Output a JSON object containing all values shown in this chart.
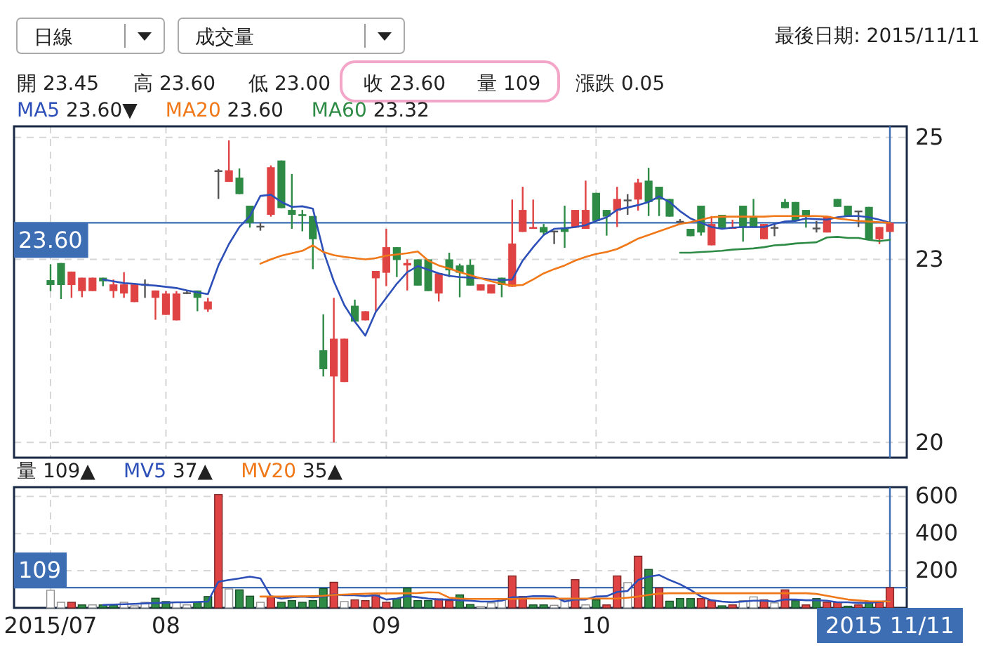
{
  "chart_data": [
    {
      "type": "candlestick",
      "annotations": [
        "日線",
        "成交量",
        "最後日期: 2015/11/11",
        "開 23.45",
        "高 23.60",
        "低 23.00",
        "收 23.60",
        "量 109",
        "漲跌 0.05"
      ],
      "categories": [
        "2015/07",
        null,
        null,
        null,
        null,
        null,
        null,
        null,
        null,
        null,
        null,
        "08",
        null,
        null,
        null,
        null,
        null,
        null,
        null,
        null,
        null,
        null,
        null,
        null,
        null,
        null,
        null,
        null,
        null,
        null,
        null,
        null,
        "09",
        null,
        null,
        null,
        null,
        null,
        null,
        null,
        null,
        null,
        null,
        null,
        null,
        null,
        null,
        null,
        null,
        null,
        null,
        null,
        "10",
        null,
        null,
        null,
        null,
        null,
        null,
        null,
        null,
        null,
        null,
        null,
        null,
        null,
        null,
        null,
        null,
        null,
        null,
        null,
        null,
        null,
        null,
        null,
        null,
        null,
        null,
        null,
        "2015 11/11"
      ],
      "ohlc": [
        [
          22.66,
          22.92,
          22.48,
          22.58
        ],
        [
          22.94,
          22.94,
          22.35,
          22.58
        ],
        [
          22.58,
          22.8,
          22.37,
          22.8
        ],
        [
          22.48,
          22.7,
          22.38,
          22.7
        ],
        [
          22.48,
          22.7,
          22.48,
          22.7
        ],
        [
          22.7,
          22.7,
          22.56,
          22.64
        ],
        [
          22.48,
          22.67,
          22.37,
          22.59
        ],
        [
          22.44,
          22.79,
          22.37,
          22.59
        ],
        [
          22.3,
          22.59,
          22.3,
          22.59
        ],
        [
          22.6,
          22.67,
          22.37,
          22.6
        ],
        [
          22.37,
          22.49,
          22.01,
          22.49
        ],
        [
          22.09,
          22.48,
          22.09,
          22.44
        ],
        [
          22.0,
          22.48,
          22.0,
          22.44
        ],
        [
          22.46,
          22.5,
          22.43,
          22.46
        ],
        [
          22.49,
          22.49,
          22.15,
          22.37
        ],
        [
          22.18,
          22.37,
          22.14,
          22.31
        ],
        [
          24.46,
          24.48,
          23.99,
          24.46
        ],
        [
          24.27,
          24.95,
          24.27,
          24.46
        ],
        [
          24.34,
          24.49,
          24.07,
          24.07
        ],
        [
          23.88,
          23.88,
          23.52,
          23.6
        ],
        [
          23.55,
          23.6,
          23.47,
          23.55
        ],
        [
          23.73,
          24.54,
          23.7,
          24.51
        ],
        [
          24.62,
          24.62,
          23.84,
          23.84
        ],
        [
          23.81,
          24.4,
          23.5,
          23.73
        ],
        [
          23.74,
          23.81,
          23.46,
          23.71
        ],
        [
          23.71,
          23.71,
          22.84,
          23.33
        ],
        [
          21.51,
          22.1,
          21.08,
          21.2
        ],
        [
          21.08,
          22.37,
          20.0,
          21.7
        ],
        [
          20.99,
          21.7,
          20.99,
          21.7
        ],
        [
          22.24,
          22.34,
          21.98,
          21.98
        ],
        [
          22.0,
          22.15,
          22.0,
          22.15
        ],
        [
          22.69,
          22.81,
          22.15,
          22.81
        ],
        [
          22.78,
          23.5,
          22.56,
          23.2
        ],
        [
          23.2,
          23.2,
          22.71,
          22.99
        ],
        [
          22.9,
          23.0,
          22.49,
          22.94
        ],
        [
          23.0,
          23.0,
          22.57,
          22.57
        ],
        [
          23.0,
          23.0,
          22.48,
          22.48
        ],
        [
          22.44,
          22.77,
          22.31,
          22.77
        ],
        [
          23.0,
          23.11,
          22.71,
          22.82
        ],
        [
          22.9,
          22.93,
          22.38,
          22.78
        ],
        [
          22.91,
          23.0,
          22.57,
          22.57
        ],
        [
          22.49,
          22.59,
          22.49,
          22.59
        ],
        [
          22.44,
          22.59,
          22.44,
          22.59
        ],
        [
          22.7,
          22.7,
          22.38,
          22.58
        ],
        [
          22.55,
          23.98,
          22.55,
          23.26
        ],
        [
          23.45,
          24.19,
          23.45,
          23.81
        ],
        [
          23.5,
          23.98,
          23.5,
          23.53
        ],
        [
          23.53,
          23.58,
          23.39,
          23.44
        ],
        [
          23.47,
          23.47,
          23.25,
          23.47
        ],
        [
          23.52,
          23.88,
          23.19,
          23.45
        ],
        [
          23.52,
          23.81,
          23.52,
          23.81
        ],
        [
          23.5,
          24.29,
          23.5,
          23.81
        ],
        [
          24.09,
          24.09,
          23.63,
          23.63
        ],
        [
          23.81,
          23.81,
          23.39,
          23.7
        ],
        [
          23.8,
          24.19,
          23.53,
          23.99
        ],
        [
          23.98,
          24.07,
          23.73,
          23.98
        ],
        [
          23.98,
          24.32,
          23.8,
          24.26
        ],
        [
          24.29,
          24.5,
          23.71,
          23.94
        ],
        [
          24.19,
          24.19,
          23.71,
          23.98
        ],
        [
          23.99,
          23.99,
          23.7,
          23.7
        ],
        [
          23.63,
          23.66,
          23.6,
          23.63
        ],
        [
          23.5,
          23.5,
          23.38,
          23.38
        ],
        [
          23.88,
          23.88,
          23.39,
          23.44
        ],
        [
          23.23,
          23.71,
          23.23,
          23.58
        ],
        [
          23.73,
          23.73,
          23.5,
          23.5
        ],
        [
          23.5,
          23.65,
          23.5,
          23.53
        ],
        [
          23.88,
          23.88,
          23.29,
          23.52
        ],
        [
          23.71,
          23.99,
          23.52,
          23.52
        ],
        [
          23.33,
          23.58,
          23.33,
          23.58
        ],
        [
          23.53,
          23.58,
          23.38,
          23.53
        ],
        [
          23.94,
          23.99,
          23.84,
          23.84
        ],
        [
          23.94,
          23.94,
          23.63,
          23.63
        ],
        [
          23.81,
          23.81,
          23.52,
          23.7
        ],
        [
          23.52,
          23.63,
          23.44,
          23.52
        ],
        [
          23.44,
          23.71,
          23.44,
          23.71
        ],
        [
          23.99,
          23.99,
          23.86,
          23.86
        ],
        [
          23.88,
          23.88,
          23.71,
          23.71
        ],
        [
          23.8,
          23.8,
          23.53,
          23.8
        ],
        [
          23.86,
          23.86,
          23.33,
          23.33
        ],
        [
          23.33,
          23.53,
          23.25,
          23.53
        ],
        [
          23.45,
          23.6,
          23.45,
          23.6
        ]
      ],
      "colors": [
        "#2e8b46",
        "#2e8b46",
        "#e04343",
        "#e04343",
        "#e04343",
        "#2e8b46",
        "#e04343",
        "#e04343",
        "#e04343",
        "#555555",
        "#e04343",
        "#e04343",
        "#e04343",
        "#555555",
        "#2e8b46",
        "#e04343",
        "#555555",
        "#e04343",
        "#2e8b46",
        "#2e8b46",
        "#555555",
        "#e04343",
        "#2e8b46",
        "#2e8b46",
        "#2e8b46",
        "#2e8b46",
        "#2e8b46",
        "#e04343",
        "#e04343",
        "#2e8b46",
        "#e04343",
        "#e04343",
        "#e04343",
        "#2e8b46",
        "#e04343",
        "#2e8b46",
        "#2e8b46",
        "#e04343",
        "#2e8b46",
        "#2e8b46",
        "#2e8b46",
        "#e04343",
        "#e04343",
        "#2e8b46",
        "#e04343",
        "#e04343",
        "#e04343",
        "#2e8b46",
        "#555555",
        "#2e8b46",
        "#e04343",
        "#e04343",
        "#2e8b46",
        "#2e8b46",
        "#e04343",
        "#555555",
        "#e04343",
        "#2e8b46",
        "#2e8b46",
        "#2e8b46",
        "#555555",
        "#2e8b46",
        "#2e8b46",
        "#e04343",
        "#2e8b46",
        "#e04343",
        "#2e8b46",
        "#2e8b46",
        "#e04343",
        "#555555",
        "#2e8b46",
        "#2e8b46",
        "#2e8b46",
        "#555555",
        "#e04343",
        "#2e8b46",
        "#2e8b46",
        "#555555",
        "#2e8b46",
        "#e04343",
        "#e04343"
      ],
      "series": [
        {
          "name": "MA5 23.60▼",
          "type": "line",
          "color": "#2d4fb8",
          "values": [
            null,
            null,
            null,
            null,
            null,
            22.67,
            22.64,
            22.61,
            22.6,
            22.58,
            22.57,
            22.55,
            22.53,
            22.49,
            22.46,
            22.43,
            22.9,
            23.25,
            23.53,
            23.71,
            24.04,
            24.06,
            23.94,
            23.86,
            23.87,
            23.83,
            23.14,
            22.64,
            22.25,
            21.98,
            21.75,
            22.14,
            22.37,
            22.6,
            22.79,
            22.89,
            22.83,
            22.77,
            22.73,
            22.71,
            22.7,
            22.69,
            22.67,
            22.66,
            22.67,
            22.98,
            23.2,
            23.4,
            23.5,
            23.51,
            23.53,
            23.56,
            23.63,
            23.69,
            23.81,
            23.85,
            23.89,
            23.94,
            24.03,
            23.94,
            23.79,
            23.67,
            23.6,
            23.53,
            23.5,
            23.52,
            23.53,
            23.53,
            23.53,
            23.58,
            23.62,
            23.63,
            23.67,
            23.66,
            23.65,
            23.69,
            23.71,
            23.71,
            23.69,
            23.65,
            23.6
          ]
        },
        {
          "name": "MA20 23.60",
          "type": "line",
          "color": "#f07818",
          "values": [
            null,
            null,
            null,
            null,
            null,
            null,
            null,
            null,
            null,
            null,
            null,
            null,
            null,
            null,
            null,
            null,
            null,
            null,
            null,
            null,
            22.93,
            23.0,
            23.06,
            23.1,
            23.14,
            23.23,
            23.12,
            23.07,
            23.04,
            23.02,
            23.0,
            23.02,
            23.06,
            23.08,
            23.1,
            23.13,
            22.98,
            22.9,
            22.85,
            22.79,
            22.74,
            22.69,
            22.64,
            22.6,
            22.57,
            22.58,
            22.67,
            22.77,
            22.84,
            22.9,
            22.98,
            23.04,
            23.09,
            23.12,
            23.17,
            23.25,
            23.34,
            23.4,
            23.46,
            23.52,
            23.58,
            23.61,
            23.65,
            23.69,
            23.7,
            23.7,
            23.7,
            23.7,
            23.7,
            23.71,
            23.71,
            23.71,
            23.71,
            23.71,
            23.7,
            23.67,
            23.65,
            23.63,
            23.62,
            23.61,
            23.6
          ]
        },
        {
          "name": "MA60 23.32",
          "type": "line",
          "color": "#2e8b46",
          "values": [
            null,
            null,
            null,
            null,
            null,
            null,
            null,
            null,
            null,
            null,
            null,
            null,
            null,
            null,
            null,
            null,
            null,
            null,
            null,
            null,
            null,
            null,
            null,
            null,
            null,
            null,
            null,
            null,
            null,
            null,
            null,
            null,
            null,
            null,
            null,
            null,
            null,
            null,
            null,
            null,
            null,
            null,
            null,
            null,
            null,
            null,
            null,
            null,
            null,
            null,
            null,
            null,
            null,
            null,
            null,
            null,
            null,
            null,
            null,
            null,
            23.11,
            23.11,
            23.12,
            23.13,
            23.14,
            23.16,
            23.17,
            23.18,
            23.2,
            23.23,
            23.24,
            23.26,
            23.27,
            23.28,
            23.36,
            23.37,
            23.35,
            23.35,
            23.32,
            23.3,
            23.32
          ]
        }
      ],
      "ylim": [
        19.75,
        25.18
      ],
      "yticks": [
        20,
        23,
        25
      ],
      "grid": true,
      "legend": "top left",
      "tick_labels": "y",
      "ref_lines": [
        {
          "axis": "y",
          "value": 23.6,
          "label": "23.60",
          "color": "#3d6eb4"
        },
        {
          "axis": "x",
          "value": "2015 11/11",
          "color": "#3d6eb4"
        }
      ]
    },
    {
      "type": "bar",
      "annotations": [
        "量 109▲"
      ],
      "categories": [
        "2015/07",
        null,
        null,
        null,
        null,
        null,
        null,
        null,
        null,
        null,
        null,
        "08",
        null,
        null,
        null,
        null,
        null,
        null,
        null,
        null,
        null,
        null,
        null,
        null,
        null,
        null,
        null,
        null,
        null,
        null,
        null,
        null,
        "09",
        null,
        null,
        null,
        null,
        null,
        null,
        null,
        null,
        null,
        null,
        null,
        null,
        null,
        null,
        null,
        null,
        null,
        null,
        null,
        "10",
        null,
        null,
        null,
        null,
        null,
        null,
        null,
        null,
        null,
        null,
        null,
        null,
        null,
        null,
        null,
        null,
        null,
        null,
        null,
        null,
        null,
        null,
        null,
        null,
        null,
        null,
        null,
        "2015 11/11"
      ],
      "series": [
        {
          "values": [
            95,
            30,
            30,
            16,
            16,
            16,
            16,
            30,
            11,
            30,
            52,
            34,
            30,
            16,
            30,
            61,
            610,
            102,
            97,
            63,
            30,
            59,
            30,
            39,
            30,
            39,
            104,
            138,
            34,
            43,
            39,
            68,
            30,
            50,
            107,
            39,
            39,
            48,
            39,
            70,
            18,
            7,
            27,
            45,
            172,
            61,
            16,
            16,
            14,
            43,
            152,
            16,
            43,
            16,
            172,
            136,
            278,
            207,
            107,
            36,
            50,
            50,
            50,
            39,
            11,
            16,
            39,
            59,
            43,
            27,
            97,
            39,
            16,
            50,
            30,
            30,
            9,
            16,
            32,
            32,
            109
          ],
          "colors": [
            "#ffffff",
            "#ffffff",
            "#e04343",
            "#2e8b46",
            "#ffffff",
            "#2e8b46",
            "#2e8b46",
            "#ffffff",
            "#ffffff",
            "#ffffff",
            "#2e8b46",
            "#2e8b46",
            "#ffffff",
            "#ffffff",
            "#2e8b46",
            "#2e8b46",
            "#e04343",
            "#ffffff",
            "#2e8b46",
            "#2e8b46",
            "#ffffff",
            "#e04343",
            "#2e8b46",
            "#2e8b46",
            "#2e8b46",
            "#2e8b46",
            "#2e8b46",
            "#e04343",
            "#ffffff",
            "#e04343",
            "#e04343",
            "#e04343",
            "#e04343",
            "#2e8b46",
            "#2e8b46",
            "#2e8b46",
            "#2e8b46",
            "#e04343",
            "#e04343",
            "#2e8b46",
            "#2e8b46",
            "#ffffff",
            "#ffffff",
            "#ffffff",
            "#e04343",
            "#e04343",
            "#2e8b46",
            "#2e8b46",
            "#ffffff",
            "#ffffff",
            "#e04343",
            "#ffffff",
            "#2e8b46",
            "#e04343",
            "#e04343",
            "#ffffff",
            "#e04343",
            "#2e8b46",
            "#e04343",
            "#2e8b46",
            "#2e8b46",
            "#2e8b46",
            "#e04343",
            "#e04343",
            "#2e8b46",
            "#e04343",
            "#ffffff",
            "#ffffff",
            "#e04343",
            "#ffffff",
            "#e04343",
            "#2e8b46",
            "#e04343",
            "#2e8b46",
            "#e04343",
            "#e04343",
            "#2e8b46",
            "#e04343",
            "#2e8b46",
            "#e04343",
            "#e04343"
          ]
        },
        {
          "name": "MV5 37▲",
          "type": "line",
          "color": "#2d4fb8",
          "values": [
            null,
            null,
            null,
            null,
            null,
            16,
            18,
            20,
            22,
            24,
            26,
            28,
            30,
            30,
            32,
            34,
            141,
            150,
            159,
            168,
            159,
            63,
            50,
            57,
            61,
            57,
            61,
            73,
            68,
            68,
            63,
            68,
            45,
            50,
            63,
            57,
            50,
            45,
            45,
            41,
            39,
            34,
            34,
            39,
            57,
            57,
            63,
            63,
            61,
            34,
            45,
            45,
            61,
            63,
            86,
            91,
            150,
            168,
            177,
            150,
            127,
            97,
            61,
            41,
            34,
            30,
            34,
            39,
            39,
            34,
            45,
            45,
            41,
            41,
            39,
            30,
            30,
            27,
            27,
            32,
            37
          ]
        },
        {
          "name": "MV20 35▲",
          "type": "line",
          "color": "#f07818",
          "values": [
            null,
            null,
            null,
            null,
            null,
            null,
            null,
            null,
            null,
            null,
            null,
            null,
            null,
            null,
            null,
            null,
            null,
            null,
            null,
            null,
            61,
            61,
            61,
            62,
            62,
            63,
            65,
            70,
            72,
            74,
            76,
            78,
            78,
            78,
            79,
            80,
            84,
            82,
            55,
            50,
            48,
            48,
            48,
            48,
            48,
            50,
            50,
            50,
            50,
            50,
            50,
            50,
            50,
            50,
            50,
            55,
            61,
            70,
            77,
            79,
            79,
            79,
            79,
            79,
            79,
            79,
            79,
            79,
            79,
            79,
            79,
            79,
            79,
            75,
            65,
            55,
            45,
            40,
            36,
            35,
            35
          ]
        }
      ],
      "ylim": [
        0,
        650
      ],
      "yticks": [
        200,
        400,
        600
      ],
      "grid": true,
      "legend": "top left",
      "ref_lines": [
        {
          "axis": "y",
          "value": 109,
          "label": "109",
          "color": "#3d6eb4"
        },
        {
          "axis": "x",
          "value": "2015 11/11",
          "color": "#3d6eb4"
        }
      ]
    }
  ]
}
